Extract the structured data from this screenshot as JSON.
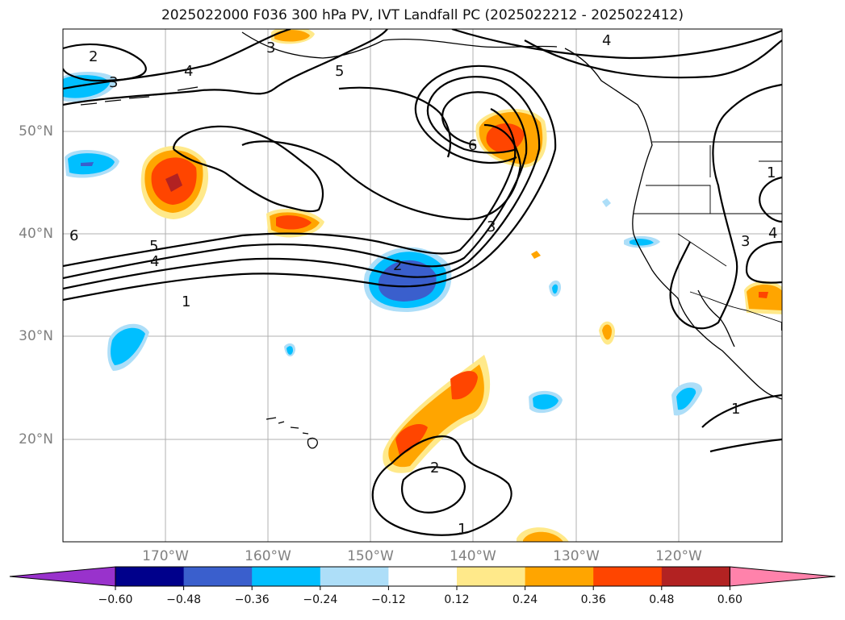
{
  "title": "2025022000 F036 300 hPa PV, IVT Landfall PC (2025022212 - 2025022412)",
  "latitude_labels": [
    "50°N",
    "40°N",
    "30°N",
    "20°N"
  ],
  "longitude_labels": [
    "170°W",
    "160°W",
    "150°W",
    "140°W",
    "130°W",
    "120°W"
  ],
  "contour_labels": [
    "2",
    "3",
    "4",
    "5",
    "3",
    "5",
    "4",
    "1",
    "6",
    "3",
    "2",
    "4",
    "2",
    "1",
    "1",
    "6",
    "1",
    "3",
    "4"
  ],
  "colorbar": {
    "ticks": [
      "−0.60",
      "−0.48",
      "−0.36",
      "−0.24",
      "−0.12",
      "0.12",
      "0.24",
      "0.36",
      "0.48",
      "0.60"
    ],
    "colors": [
      "#9932CC",
      "#00008B",
      "#3A5FCD",
      "#00BFFF",
      "#ADDEF8",
      "#FFFFFF",
      "#FFE98A",
      "#FFA500",
      "#FF4500",
      "#B22222",
      "#FF82AB"
    ]
  }
}
